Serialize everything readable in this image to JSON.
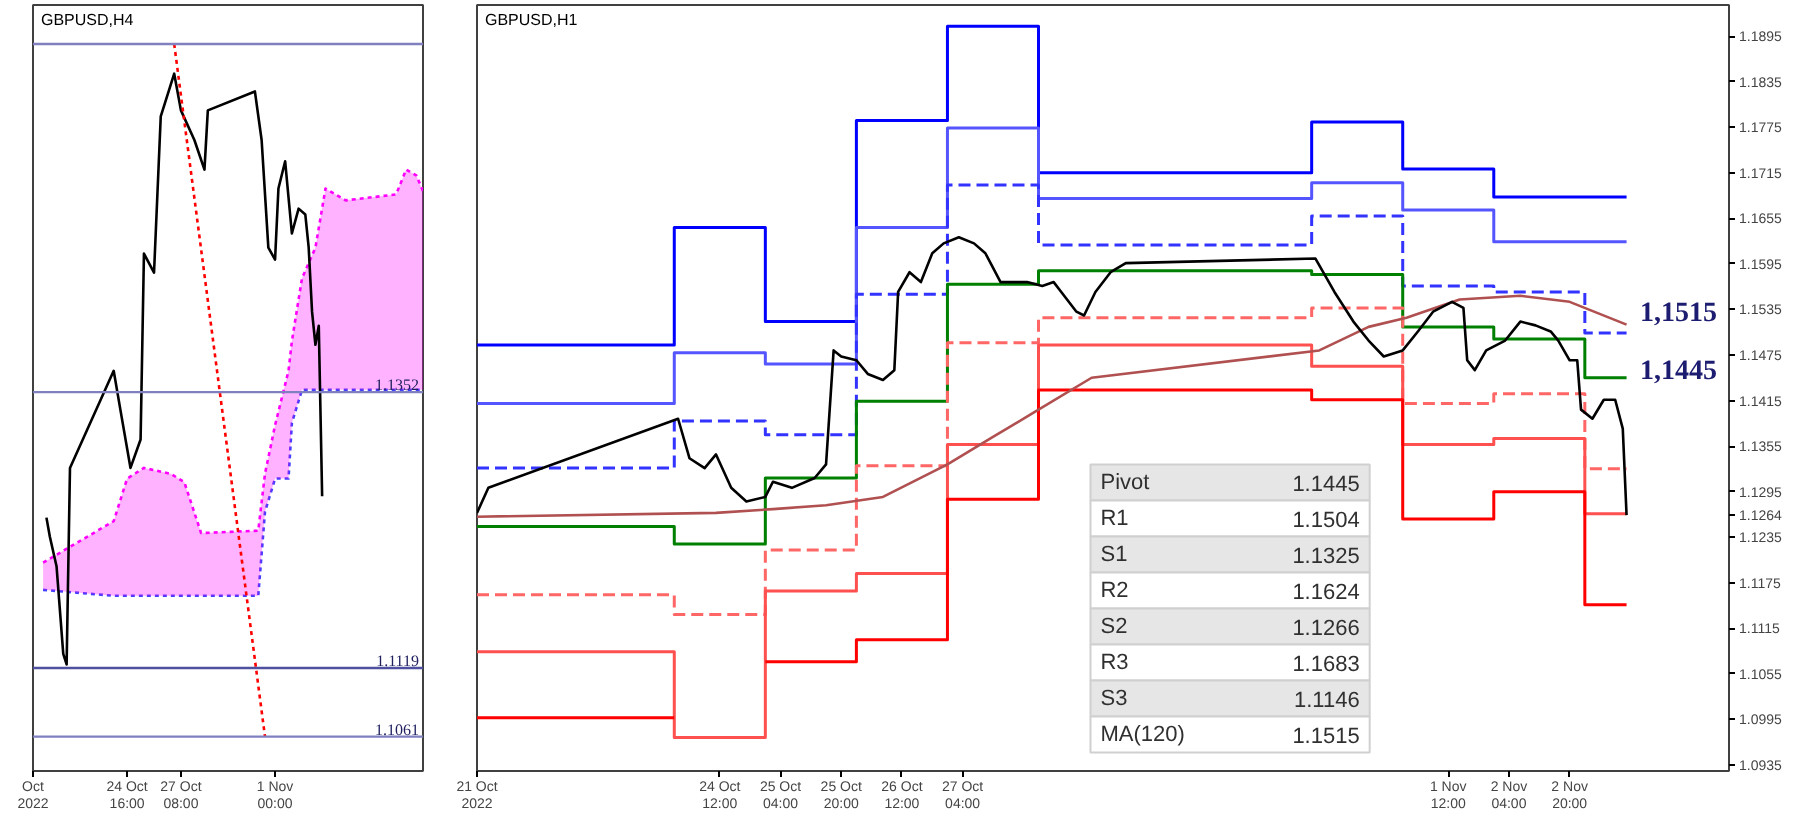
{
  "chart_data": [
    {
      "type": "line",
      "title": "GBPUSD,H4",
      "xlim": [
        "2022-10-20T00:00",
        "2022-11-08T08:00"
      ],
      "ylim": [
        1.1032,
        1.1679
      ],
      "tick_labels": "x",
      "xticks": [
        {
          "value": "2022-10-20T00:00",
          "label": "Oct 2022"
        },
        {
          "value": "2022-10-24T16:00",
          "label": "24 Oct 16:00"
        },
        {
          "value": "2022-10-27T08:00",
          "label": "27 Oct 08:00"
        },
        {
          "value": "2022-11-01T00:00",
          "label": "1 Nov 00:00"
        }
      ],
      "series": [
        {
          "color": "#4040ff",
          "line_style": "dotted",
          "x": [
            "2022-10-20T12:00",
            "2022-10-24T00:00",
            "2022-10-24T16:00",
            "2022-10-25T12:00",
            "2022-10-26T20:00",
            "2022-10-27T12:00",
            "2022-10-28T08:00",
            "2022-10-31T04:00",
            "2022-10-31T12:00",
            "2022-11-01T00:00",
            "2022-11-01T16:00",
            "2022-11-01T20:00",
            "2022-11-02T08:00",
            "2022-11-03T00:00",
            "2022-11-03T12:00",
            "2022-11-04T12:00",
            "2022-11-07T00:00",
            "2022-11-07T12:00",
            "2022-11-08T00:00",
            "2022-11-08T08:00"
          ],
          "values": [
            1.1185,
            1.118,
            1.118,
            1.118,
            1.118,
            1.118,
            1.118,
            1.118,
            1.1251,
            1.1279,
            1.1279,
            1.1326,
            1.1354,
            1.1354,
            1.1354,
            1.1354,
            1.1354,
            1.1354,
            1.1354,
            1.1354
          ]
        },
        {
          "color": "#ff00ff",
          "line_style": "dotted",
          "x": [
            "2022-10-20T12:00",
            "2022-10-24T00:00",
            "2022-10-24T16:00",
            "2022-10-25T12:00",
            "2022-10-26T20:00",
            "2022-10-27T12:00",
            "2022-10-28T08:00",
            "2022-10-31T04:00",
            "2022-10-31T12:00",
            "2022-11-01T00:00",
            "2022-11-01T16:00",
            "2022-11-01T20:00",
            "2022-11-02T08:00",
            "2022-11-03T00:00",
            "2022-11-03T12:00",
            "2022-11-04T12:00",
            "2022-11-07T00:00",
            "2022-11-07T12:00",
            "2022-11-08T00:00",
            "2022-11-08T08:00"
          ],
          "values": [
            1.1208,
            1.1243,
            1.1279,
            1.1288,
            1.1283,
            1.1276,
            1.1233,
            1.1235,
            1.1283,
            1.1324,
            1.137,
            1.1395,
            1.1448,
            1.1474,
            1.1524,
            1.1514,
            1.1519,
            1.154,
            1.1535,
            1.1522
          ],
          "upper": [
            1.1208,
            1.1243,
            1.1279,
            1.1288,
            1.1283,
            1.1276,
            1.1233,
            1.1235,
            1.1283,
            1.1324,
            1.137,
            1.1395,
            1.1448,
            1.1474,
            1.1524,
            1.1514,
            1.1519,
            1.154,
            1.1535,
            1.1522
          ],
          "lower": [
            1.1185,
            1.118,
            1.118,
            1.118,
            1.118,
            1.118,
            1.118,
            1.118,
            1.1251,
            1.1279,
            1.1279,
            1.1326,
            1.1354,
            1.1354,
            1.1354,
            1.1354,
            1.1354,
            1.1354,
            1.1354,
            1.1354
          ]
        },
        {
          "color": "#000000",
          "x": [
            "2022-10-20T16:00",
            "2022-10-20T20:00",
            "2022-10-21T04:00",
            "2022-10-21T12:00",
            "2022-10-21T16:00",
            "2022-10-21T20:00",
            "2022-10-24T00:00",
            "2022-10-24T08:00",
            "2022-10-24T20:00",
            "2022-10-25T08:00",
            "2022-10-25T12:00",
            "2022-10-26T00:00",
            "2022-10-26T08:00",
            "2022-10-27T00:00",
            "2022-10-27T08:00",
            "2022-10-28T00:00",
            "2022-10-28T12:00",
            "2022-10-28T16:00",
            "2022-10-31T00:00",
            "2022-10-31T08:00",
            "2022-10-31T16:00",
            "2022-11-01T00:00",
            "2022-11-01T04:00",
            "2022-11-01T12:00",
            "2022-11-01T20:00",
            "2022-11-02T04:00",
            "2022-11-02T12:00",
            "2022-11-02T16:00",
            "2022-11-02T20:00",
            "2022-11-03T00:00",
            "2022-11-03T04:00",
            "2022-11-03T08:00"
          ],
          "values": [
            1.1246,
            1.123,
            1.1205,
            1.1131,
            1.1122,
            1.1288,
            1.137,
            1.1337,
            1.1288,
            1.1312,
            1.1469,
            1.1453,
            1.1585,
            1.1621,
            1.159,
            1.1565,
            1.154,
            1.159,
            1.1606,
            1.1565,
            1.1474,
            1.1464,
            1.1524,
            1.1547,
            1.1486,
            1.1507,
            1.1502,
            1.1474,
            1.142,
            1.1392,
            1.1408,
            1.1264
          ]
        },
        {
          "color": "#ff0000",
          "line_style": "dotted",
          "x": [
            "2022-10-27T00:00",
            "2022-10-31T12:00"
          ],
          "values": [
            1.1646,
            1.1061
          ]
        }
      ],
      "ref_lines": [
        {
          "axis": "y",
          "value": 1.1646,
          "label": null,
          "color": "#8080c0"
        },
        {
          "axis": "y",
          "value": 1.1352,
          "label": "1.1352",
          "color": "#8080c0"
        },
        {
          "axis": "y",
          "value": 1.1119,
          "label": "1.1119",
          "color": "#5050a0"
        },
        {
          "axis": "y",
          "value": 1.1061,
          "label": "1.1061",
          "color": "#8080c0"
        }
      ]
    },
    {
      "type": "line",
      "title": "GBPUSD,H1",
      "xlim": [
        "2022-10-21T20:00",
        "2022-11-04T14:00"
      ],
      "ylim": [
        1.0927,
        1.1936
      ],
      "xticks": [
        {
          "value": "2022-10-21T20:00",
          "label": "21 Oct 2022"
        },
        {
          "value": "2022-10-24T12:00",
          "label": "24 Oct 12:00"
        },
        {
          "value": "2022-10-25T04:00",
          "label": "25 Oct 04:00"
        },
        {
          "value": "2022-10-25T20:00",
          "label": "25 Oct 20:00"
        },
        {
          "value": "2022-10-26T12:00",
          "label": "26 Oct 12:00"
        },
        {
          "value": "2022-10-27T04:00",
          "label": "27 Oct 04:00"
        },
        {
          "value": "2022-11-01T12:00",
          "label": "1 Nov 12:00"
        },
        {
          "value": "2022-11-02T04:00",
          "label": "2 Nov 04:00"
        },
        {
          "value": "2022-11-02T20:00",
          "label": "2 Nov 20:00"
        }
      ],
      "yticks": [
        1.0935,
        1.0995,
        1.1055,
        1.1115,
        1.1175,
        1.1235,
        1.1264,
        1.1295,
        1.1355,
        1.1415,
        1.1475,
        1.1535,
        1.1595,
        1.1655,
        1.1715,
        1.1775,
        1.1835,
        1.1895
      ],
      "series": [
        {
          "type": "step",
          "color": "#0000ff",
          "x": [
            "2022-10-21T20:00",
            "2022-10-24T00:00",
            "2022-10-25T00:00",
            "2022-10-26T00:00",
            "2022-10-27T00:00",
            "2022-10-28T00:00",
            "2022-10-31T00:00",
            "2022-11-01T00:00",
            "2022-11-02T00:00",
            "2022-11-03T00:00",
            "2022-11-03T11:00"
          ],
          "values": [
            1.1488,
            1.1643,
            1.1519,
            1.1784,
            1.1908,
            1.1715,
            1.1782,
            1.172,
            1.1683,
            1.1683,
            1.1683
          ]
        },
        {
          "type": "step",
          "color": "#5555ff",
          "x": [
            "2022-10-21T20:00",
            "2022-10-24T00:00",
            "2022-10-25T00:00",
            "2022-10-26T00:00",
            "2022-10-27T00:00",
            "2022-10-28T00:00",
            "2022-10-31T00:00",
            "2022-11-01T00:00",
            "2022-11-02T00:00",
            "2022-11-03T00:00",
            "2022-11-03T11:00"
          ],
          "values": [
            1.1411,
            1.1478,
            1.1463,
            1.1643,
            1.1774,
            1.1681,
            1.1702,
            1.1666,
            1.1624,
            1.1624,
            1.1624
          ]
        },
        {
          "type": "step",
          "color": "#3333ff",
          "line_style": "dashed",
          "x": [
            "2022-10-21T20:00",
            "2022-10-24T00:00",
            "2022-10-25T00:00",
            "2022-10-26T00:00",
            "2022-10-27T00:00",
            "2022-10-28T00:00",
            "2022-10-31T00:00",
            "2022-11-01T00:00",
            "2022-11-02T00:00",
            "2022-11-03T00:00",
            "2022-11-03T11:00"
          ],
          "values": [
            1.1326,
            1.1388,
            1.137,
            1.1555,
            1.1699,
            1.162,
            1.1658,
            1.1566,
            1.1558,
            1.1504,
            1.1504
          ]
        },
        {
          "type": "step",
          "color": "#008000",
          "x": [
            "2022-10-21T20:00",
            "2022-10-24T00:00",
            "2022-10-25T00:00",
            "2022-10-26T00:00",
            "2022-10-27T00:00",
            "2022-10-28T00:00",
            "2022-10-31T00:00",
            "2022-11-01T00:00",
            "2022-11-02T00:00",
            "2022-11-03T00:00",
            "2022-11-03T11:00"
          ],
          "values": [
            1.1249,
            1.1226,
            1.1313,
            1.1414,
            1.1568,
            1.1586,
            1.1581,
            1.1512,
            1.1496,
            1.1445,
            1.1445
          ]
        },
        {
          "type": "step",
          "color": "#ff6666",
          "line_style": "dashed",
          "x": [
            "2022-10-21T20:00",
            "2022-10-24T00:00",
            "2022-10-25T00:00",
            "2022-10-26T00:00",
            "2022-10-27T00:00",
            "2022-10-28T00:00",
            "2022-10-31T00:00",
            "2022-11-01T00:00",
            "2022-11-02T00:00",
            "2022-11-03T00:00",
            "2022-11-03T11:00"
          ],
          "values": [
            1.1159,
            1.1133,
            1.1218,
            1.1329,
            1.1491,
            1.1524,
            1.1537,
            1.1411,
            1.1424,
            1.1325,
            1.1325
          ]
        },
        {
          "type": "step",
          "color": "#ff5050",
          "x": [
            "2022-10-21T20:00",
            "2022-10-24T00:00",
            "2022-10-25T00:00",
            "2022-10-26T00:00",
            "2022-10-27T00:00",
            "2022-10-28T00:00",
            "2022-10-31T00:00",
            "2022-11-01T00:00",
            "2022-11-02T00:00",
            "2022-11-03T00:00",
            "2022-11-03T11:00"
          ],
          "values": [
            1.1084,
            1.0971,
            1.1164,
            1.1187,
            1.1357,
            1.1488,
            1.146,
            1.1357,
            1.1365,
            1.1266,
            1.1266
          ]
        },
        {
          "type": "step",
          "color": "#ff0000",
          "x": [
            "2022-10-21T20:00",
            "2022-10-24T00:00",
            "2022-10-25T00:00",
            "2022-10-26T00:00",
            "2022-10-27T00:00",
            "2022-10-28T00:00",
            "2022-10-31T00:00",
            "2022-11-01T00:00",
            "2022-11-02T00:00",
            "2022-11-03T00:00",
            "2022-11-03T11:00"
          ],
          "values": [
            1.0997,
            null,
            1.1071,
            1.11,
            1.1285,
            1.1429,
            1.1416,
            1.1259,
            1.1295,
            1.1146,
            1.1146
          ]
        },
        {
          "color": "#b05050",
          "x": [
            "2022-10-21T20:00",
            "2022-10-24T11:00",
            "2022-10-25T02:00",
            "2022-10-25T16:00",
            "2022-10-26T07:00",
            "2022-10-27T00:00",
            "2022-10-27T12:00",
            "2022-10-28T00:00",
            "2022-10-28T14:00",
            "2022-10-31T02:00",
            "2022-10-31T15:00",
            "2022-11-01T01:00",
            "2022-11-01T15:00",
            "2022-11-02T07:00",
            "2022-11-02T20:00",
            "2022-11-03T11:00"
          ],
          "values": [
            1.1262,
            1.1267,
            1.1272,
            1.1277,
            1.1288,
            1.1331,
            1.1367,
            1.1403,
            1.1445,
            1.1481,
            1.1512,
            1.1524,
            1.1548,
            1.1553,
            1.1545,
            1.1515
          ]
        },
        {
          "color": "#000000",
          "x": [
            "2022-10-21T20:00",
            "2022-10-21T23:00",
            "2022-10-24T01:00",
            "2022-10-24T04:00",
            "2022-10-24T08:00",
            "2022-10-24T11:00",
            "2022-10-24T15:00",
            "2022-10-24T19:00",
            "2022-10-25T00:00",
            "2022-10-25T02:00",
            "2022-10-25T07:00",
            "2022-10-25T13:00",
            "2022-10-25T16:00",
            "2022-10-25T18:00",
            "2022-10-25T20:00",
            "2022-10-26T00:00",
            "2022-10-26T03:00",
            "2022-10-26T07:00",
            "2022-10-26T10:00",
            "2022-10-26T11:00",
            "2022-10-26T14:00",
            "2022-10-26T17:00",
            "2022-10-26T20:00",
            "2022-10-26T23:00",
            "2022-10-27T03:00",
            "2022-10-27T07:00",
            "2022-10-27T10:00",
            "2022-10-27T14:00",
            "2022-10-27T18:00",
            "2022-10-27T21:00",
            "2022-10-28T01:00",
            "2022-10-28T04:00",
            "2022-10-28T06:00",
            "2022-10-28T10:00",
            "2022-10-28T12:00",
            "2022-10-28T15:00",
            "2022-10-28T19:00",
            "2022-10-28T23:00",
            "2022-10-31T01:00",
            "2022-10-31T06:00",
            "2022-10-31T11:00",
            "2022-10-31T15:00",
            "2022-10-31T19:00",
            "2022-11-01T00:00",
            "2022-11-01T04:00",
            "2022-11-01T08:00",
            "2022-11-01T13:00",
            "2022-11-01T16:00",
            "2022-11-01T17:00",
            "2022-11-01T19:00",
            "2022-11-01T22:00",
            "2022-11-02T03:00",
            "2022-11-02T07:00",
            "2022-11-02T11:00",
            "2022-11-02T15:00",
            "2022-11-02T17:00",
            "2022-11-02T20:00",
            "2022-11-02T22:00",
            "2022-11-02T23:00",
            "2022-11-03T02:00",
            "2022-11-03T05:00",
            "2022-11-03T08:00",
            "2022-11-03T10:00",
            "2022-11-03T11:00"
          ],
          "values": [
            1.1267,
            1.13,
            1.1391,
            1.1339,
            1.1326,
            1.1344,
            1.13,
            1.1282,
            1.1288,
            1.1308,
            1.13,
            1.1313,
            1.1331,
            1.1481,
            1.1473,
            1.1468,
            1.145,
            1.1442,
            1.1455,
            1.1558,
            1.1584,
            1.1571,
            1.1609,
            1.1622,
            1.163,
            1.1622,
            1.1609,
            1.1571,
            1.1571,
            1.1571,
            1.1566,
            1.1571,
            1.1558,
            1.1532,
            1.1527,
            1.1558,
            1.1584,
            1.1596,
            1.1602,
            1.1558,
            1.1519,
            1.1494,
            1.1473,
            1.1481,
            1.1506,
            1.1532,
            1.1545,
            1.1537,
            1.1468,
            1.1455,
            1.1481,
            1.1494,
            1.1519,
            1.1514,
            1.1506,
            1.1494,
            1.1468,
            1.1468,
            1.1403,
            1.1391,
            1.1416,
            1.1416,
            1.1378,
            1.1264
          ]
        }
      ],
      "annotations": [
        "1,1515",
        "1,1445",
        "Pivot 1.1445",
        "R1 1.1504",
        "S1 1.1325",
        "R2 1.1624",
        "S2 1.1266",
        "R3 1.1683",
        "S3 1.1146",
        "MA(120) 1.1515"
      ]
    }
  ]
}
